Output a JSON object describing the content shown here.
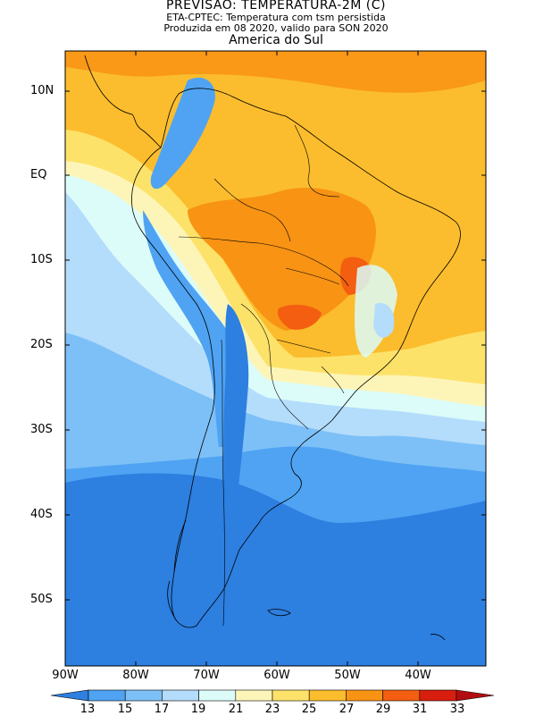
{
  "titles": {
    "main": "PREVISAO: TEMPERATURA-2M (C)",
    "model": "ETA-CPTEC: Temperatura com tsm persistida",
    "issued": "Produzida em 08 2020, valido para SON 2020",
    "region": "America do Sul"
  },
  "axes": {
    "lat_labels": [
      "10N",
      "EQ",
      "10S",
      "20S",
      "30S",
      "40S",
      "50S"
    ],
    "lon_labels": [
      "90W",
      "80W",
      "70W",
      "60W",
      "50W",
      "40W"
    ]
  },
  "colorbar": {
    "ticks": [
      "13",
      "15",
      "17",
      "19",
      "21",
      "23",
      "25",
      "27",
      "29",
      "31",
      "33"
    ],
    "colors": [
      "#2d7fe0",
      "#4fa3f2",
      "#7cc0f7",
      "#b4dcfb",
      "#dcfcfa",
      "#fdf5b8",
      "#fde26a",
      "#fbbd2d",
      "#f89314",
      "#f45e10",
      "#d81e0e",
      "#b30c10"
    ]
  }
}
